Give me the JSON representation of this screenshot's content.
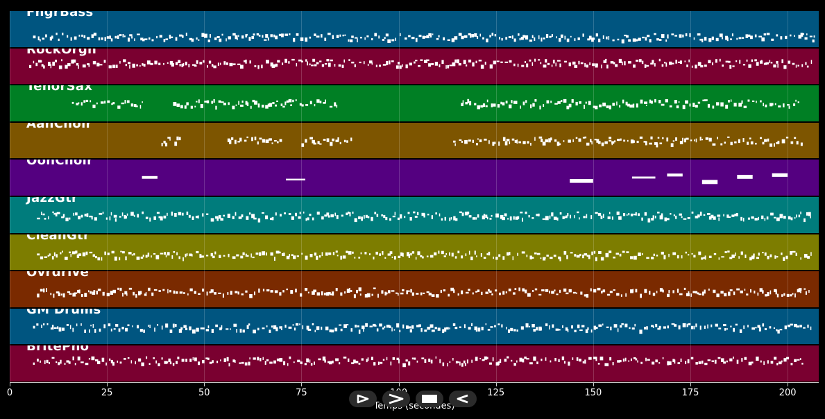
{
  "tracks": [
    {
      "name": "FngrBass",
      "color": "#005580"
    },
    {
      "name": "RockOrgn",
      "color": "#7a0030"
    },
    {
      "name": "TenorSax",
      "color": "#007f24"
    },
    {
      "name": "AahChoir",
      "color": "#7d5500"
    },
    {
      "name": "OohChoir",
      "color": "#540080"
    },
    {
      "name": "JazzGtr",
      "color": "#007c7c"
    },
    {
      "name": "CleanGtr",
      "color": "#7d7d00"
    },
    {
      "name": "Ovrdrive",
      "color": "#7a2a00"
    },
    {
      "name": "GM Drums",
      "color": "#005580"
    },
    {
      "name": "BritePno",
      "color": "#7a0030"
    }
  ],
  "axis": {
    "xlabel": "Temps (secondes)",
    "min": 0,
    "max": 208,
    "ticks": [
      "0",
      "25",
      "50",
      "75",
      "100",
      "125",
      "150",
      "175",
      "200"
    ]
  },
  "transport": [
    {
      "name": "play-button",
      "icon": "play-icon"
    },
    {
      "name": "forward-button",
      "icon": "chevron-right-icon"
    },
    {
      "name": "stop-button",
      "icon": "stop-icon"
    },
    {
      "name": "rewind-button",
      "icon": "rewind-icon"
    }
  ]
}
